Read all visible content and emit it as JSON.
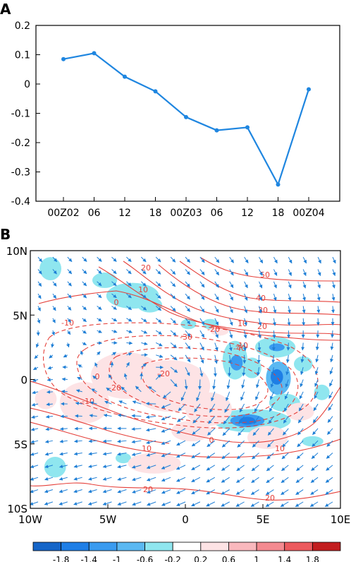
{
  "chart_data": [
    {
      "type": "line",
      "panel_label": "A",
      "categories": [
        "00Z02",
        "06",
        "12",
        "18",
        "00Z03",
        "06",
        "12",
        "18",
        "00Z04"
      ],
      "values": [
        0.085,
        0.105,
        0.025,
        -0.025,
        -0.113,
        -0.158,
        -0.148,
        -0.343,
        -0.018
      ],
      "ylim": [
        -0.4,
        0.2
      ],
      "yticks": [
        0.2,
        0.1,
        0,
        -0.1,
        -0.2,
        -0.3,
        -0.4
      ],
      "ytick_labels": [
        "0.2",
        "0.1",
        "0",
        "-0.1",
        "-0.2",
        "-0.3",
        "-0.4"
      ],
      "color": "#1f86e0",
      "grid": false
    },
    {
      "type": "heatmap",
      "panel_label": "B",
      "description_elements": [
        "shaded anomaly field",
        "red contours (solid positive, dashed negative)",
        "blue wind vectors"
      ],
      "xlim": [
        -10,
        10
      ],
      "ylim": [
        -10,
        10
      ],
      "xtick_labels": [
        "10W",
        "5W",
        "0",
        "5E",
        "10E"
      ],
      "ytick_labels": [
        "10N",
        "5N",
        "0",
        "5S",
        "10S"
      ],
      "contour_labels": [
        "50",
        "40",
        "30",
        "20",
        "10",
        "0",
        "-10",
        "-20",
        "-30",
        "-40",
        "20",
        "10",
        "0",
        "-10",
        "-20",
        "-20",
        "10",
        "20",
        "20",
        "-10",
        "10",
        "0"
      ],
      "colorbar": {
        "tick_labels": [
          "-1.8",
          "-1.4",
          "-1",
          "-0.6",
          "-0.2",
          "0.2",
          "0.6",
          "1",
          "1.4",
          "1.8"
        ],
        "colors": [
          "#1565c8",
          "#1e7ee6",
          "#3a9bf0",
          "#5bb8f2",
          "#8fe6ef",
          "#ffffff",
          "#fde3e5",
          "#f9b8bd",
          "#f48a90",
          "#ec5a5e",
          "#c21d1f"
        ]
      },
      "contour_color": "#e5403a",
      "vector_color": "#1f7fd6",
      "blobs": [
        {
          "x": -8.7,
          "y": 8.6,
          "rx": 0.7,
          "ry": 0.9,
          "level": 1
        },
        {
          "x": -5.2,
          "y": 7.7,
          "rx": 0.8,
          "ry": 0.6,
          "level": 1
        },
        {
          "x": -3.4,
          "y": 6.5,
          "rx": 1.7,
          "ry": 1.0,
          "level": 1
        },
        {
          "x": -2.3,
          "y": 5.8,
          "rx": 0.8,
          "ry": 0.6,
          "level": 1
        },
        {
          "x": 0.2,
          "y": 4.3,
          "rx": 0.5,
          "ry": 0.4,
          "level": 1
        },
        {
          "x": 1.6,
          "y": 4.3,
          "rx": 0.5,
          "ry": 0.4,
          "level": 1
        },
        {
          "x": 3.2,
          "y": 1.5,
          "rx": 0.8,
          "ry": 1.5,
          "level": 1
        },
        {
          "x": 3.3,
          "y": 1.3,
          "rx": 0.4,
          "ry": 0.6,
          "level": 3
        },
        {
          "x": 4.3,
          "y": 0.9,
          "rx": 0.6,
          "ry": 0.8,
          "level": 1
        },
        {
          "x": 5.8,
          "y": 2.5,
          "rx": 1.3,
          "ry": 0.8,
          "level": 1
        },
        {
          "x": 5.9,
          "y": 2.5,
          "rx": 0.5,
          "ry": 0.3,
          "level": 3
        },
        {
          "x": 6.0,
          "y": 0.1,
          "rx": 0.8,
          "ry": 1.3,
          "level": 2
        },
        {
          "x": 5.9,
          "y": 0.2,
          "rx": 0.4,
          "ry": 0.6,
          "level": 4
        },
        {
          "x": 7.6,
          "y": 1.2,
          "rx": 0.6,
          "ry": 0.6,
          "level": 1
        },
        {
          "x": 8.8,
          "y": -1.0,
          "rx": 0.5,
          "ry": 0.6,
          "level": 1
        },
        {
          "x": 4.3,
          "y": -3.2,
          "rx": 2.5,
          "ry": 0.9,
          "level": 1
        },
        {
          "x": 4.0,
          "y": -3.2,
          "rx": 1.1,
          "ry": 0.5,
          "level": 3
        },
        {
          "x": 4.0,
          "y": -3.2,
          "rx": 0.5,
          "ry": 0.3,
          "level": 4
        },
        {
          "x": 6.4,
          "y": -1.8,
          "rx": 1.0,
          "ry": 0.7,
          "level": 1
        },
        {
          "x": 8.2,
          "y": -4.8,
          "rx": 0.7,
          "ry": 0.4,
          "level": 1
        },
        {
          "x": -8.4,
          "y": -6.8,
          "rx": 0.7,
          "ry": 0.8,
          "level": 1
        },
        {
          "x": -4.0,
          "y": -6.1,
          "rx": 0.5,
          "ry": 0.4,
          "level": 1
        },
        {
          "x": -9.0,
          "y": -1.5,
          "rx": 0.7,
          "ry": 0.8,
          "level": -1
        },
        {
          "x": -6.5,
          "y": -1.8,
          "rx": 1.6,
          "ry": 1.6,
          "level": -1
        },
        {
          "x": -3.8,
          "y": 0.3,
          "rx": 2.3,
          "ry": 1.8,
          "level": -1
        },
        {
          "x": -1.0,
          "y": -0.5,
          "rx": 2.6,
          "ry": 2.0,
          "level": -1
        },
        {
          "x": 1.5,
          "y": -2.3,
          "rx": 1.5,
          "ry": 1.3,
          "level": -1
        },
        {
          "x": 0.4,
          "y": -4.0,
          "rx": 1.3,
          "ry": 0.8,
          "level": -1
        },
        {
          "x": 5.3,
          "y": -4.5,
          "rx": 1.3,
          "ry": 0.9,
          "level": -1
        },
        {
          "x": -2.0,
          "y": -6.5,
          "rx": 1.7,
          "ry": 0.8,
          "level": -1
        },
        {
          "x": 7.4,
          "y": -2.5,
          "rx": 0.9,
          "ry": 0.7,
          "level": -1
        },
        {
          "x": 2.2,
          "y": 3.8,
          "rx": 0.6,
          "ry": 0.4,
          "level": -1
        }
      ]
    }
  ]
}
